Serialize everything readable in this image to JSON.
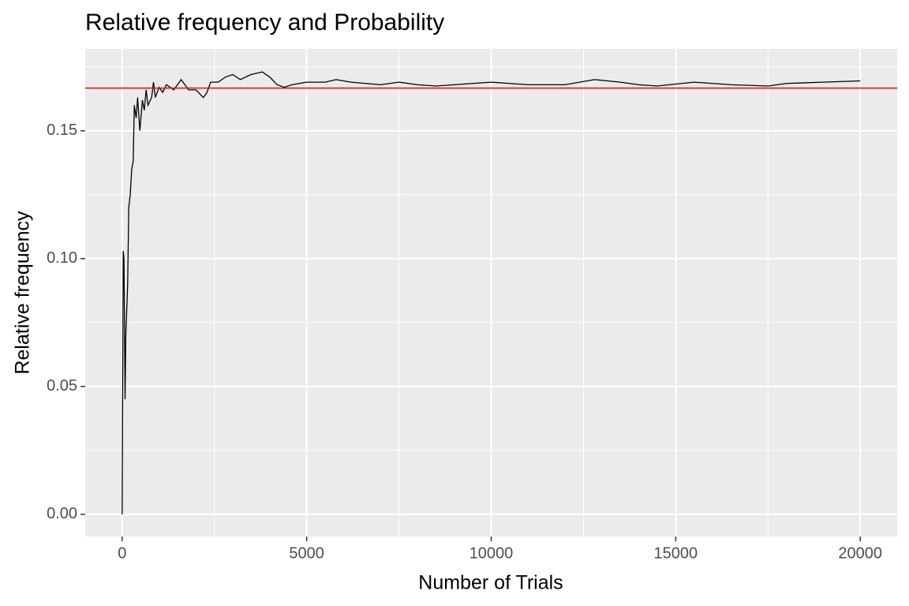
{
  "chart_data": {
    "type": "line",
    "title": "Relative frequency and Probability",
    "x_label": "Number of Trials",
    "y_label": "Relative frequency",
    "x": [
      1,
      30,
      50,
      80,
      100,
      150,
      180,
      220,
      260,
      300,
      330,
      380,
      420,
      480,
      550,
      600,
      650,
      700,
      800,
      850,
      900,
      1000,
      1100,
      1200,
      1400,
      1600,
      1800,
      2000,
      2200,
      2300,
      2400,
      2600,
      2800,
      3000,
      3200,
      3500,
      3800,
      4000,
      4200,
      4400,
      4600,
      5000,
      5500,
      5800,
      6200,
      7000,
      7500,
      8000,
      8500,
      9000,
      10000,
      11000,
      12000,
      12800,
      13500,
      14000,
      14500,
      15500,
      16500,
      17500,
      18000,
      19000,
      20000
    ],
    "values": [
      0,
      0.103,
      0.1,
      0.045,
      0.07,
      0.09,
      0.12,
      0.125,
      0.135,
      0.138,
      0.16,
      0.155,
      0.163,
      0.15,
      0.162,
      0.158,
      0.166,
      0.16,
      0.163,
      0.169,
      0.163,
      0.167,
      0.165,
      0.168,
      0.166,
      0.17,
      0.166,
      0.166,
      0.163,
      0.165,
      0.169,
      0.169,
      0.171,
      0.172,
      0.17,
      0.172,
      0.173,
      0.171,
      0.168,
      0.167,
      0.168,
      0.169,
      0.169,
      0.17,
      0.169,
      0.168,
      0.169,
      0.168,
      0.1675,
      0.168,
      0.169,
      0.168,
      0.168,
      0.17,
      0.169,
      0.168,
      0.1675,
      0.169,
      0.168,
      0.1675,
      0.1685,
      0.169,
      0.1695
    ],
    "color": "#000000",
    "hline": 0.1667,
    "hline_color": "#ff0000",
    "xlim": [
      -1000,
      21000
    ],
    "xticks": [
      0,
      5000,
      10000,
      15000,
      20000
    ],
    "ylim": [
      -0.0087,
      0.182
    ],
    "yticks": [
      {
        "value": 0,
        "label": "0.00"
      },
      {
        "value": 0.05,
        "label": "0.05"
      },
      {
        "value": 0.1,
        "label": "0.10"
      },
      {
        "value": 0.15,
        "label": "0.15"
      }
    ],
    "grid": true
  }
}
